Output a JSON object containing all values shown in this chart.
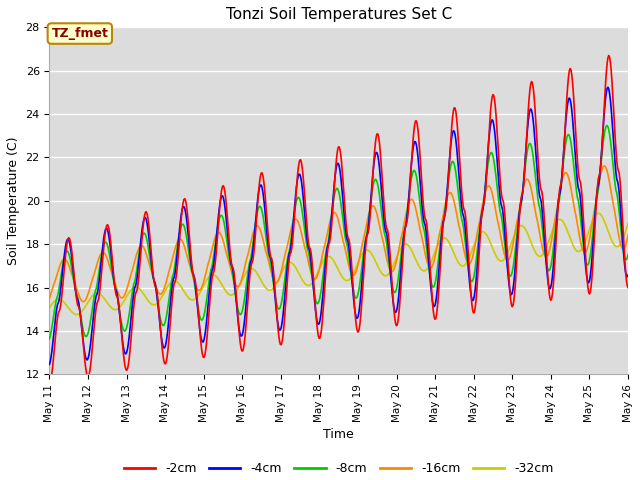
{
  "title": "Tonzi Soil Temperatures Set C",
  "xlabel": "Time",
  "ylabel": "Soil Temperature (C)",
  "ylim": [
    12,
    28
  ],
  "xlim_start": 11,
  "xlim_end": 26,
  "annotation": "TZ_fmet",
  "series_labels": [
    "-2cm",
    "-4cm",
    "-8cm",
    "-16cm",
    "-32cm"
  ],
  "series_colors": [
    "#ff0000",
    "#0000ff",
    "#00cc00",
    "#ff8800",
    "#cccc00"
  ],
  "bg_color": "#dcdcdc",
  "fig_bg": "#ffffff",
  "yticks": [
    12,
    14,
    16,
    18,
    20,
    22,
    24,
    26,
    28
  ],
  "tick_dates": [
    11,
    12,
    13,
    14,
    15,
    16,
    17,
    18,
    19,
    20,
    21,
    22,
    23,
    24,
    25,
    26
  ],
  "tick_labels": [
    "May 11",
    "May 12",
    "May 13",
    "May 14",
    "May 15",
    "May 16",
    "May 17",
    "May 18",
    "May 19",
    "May 20",
    "May 21",
    "May 22",
    "May 23",
    "May 24",
    "May 25",
    "May 26"
  ]
}
